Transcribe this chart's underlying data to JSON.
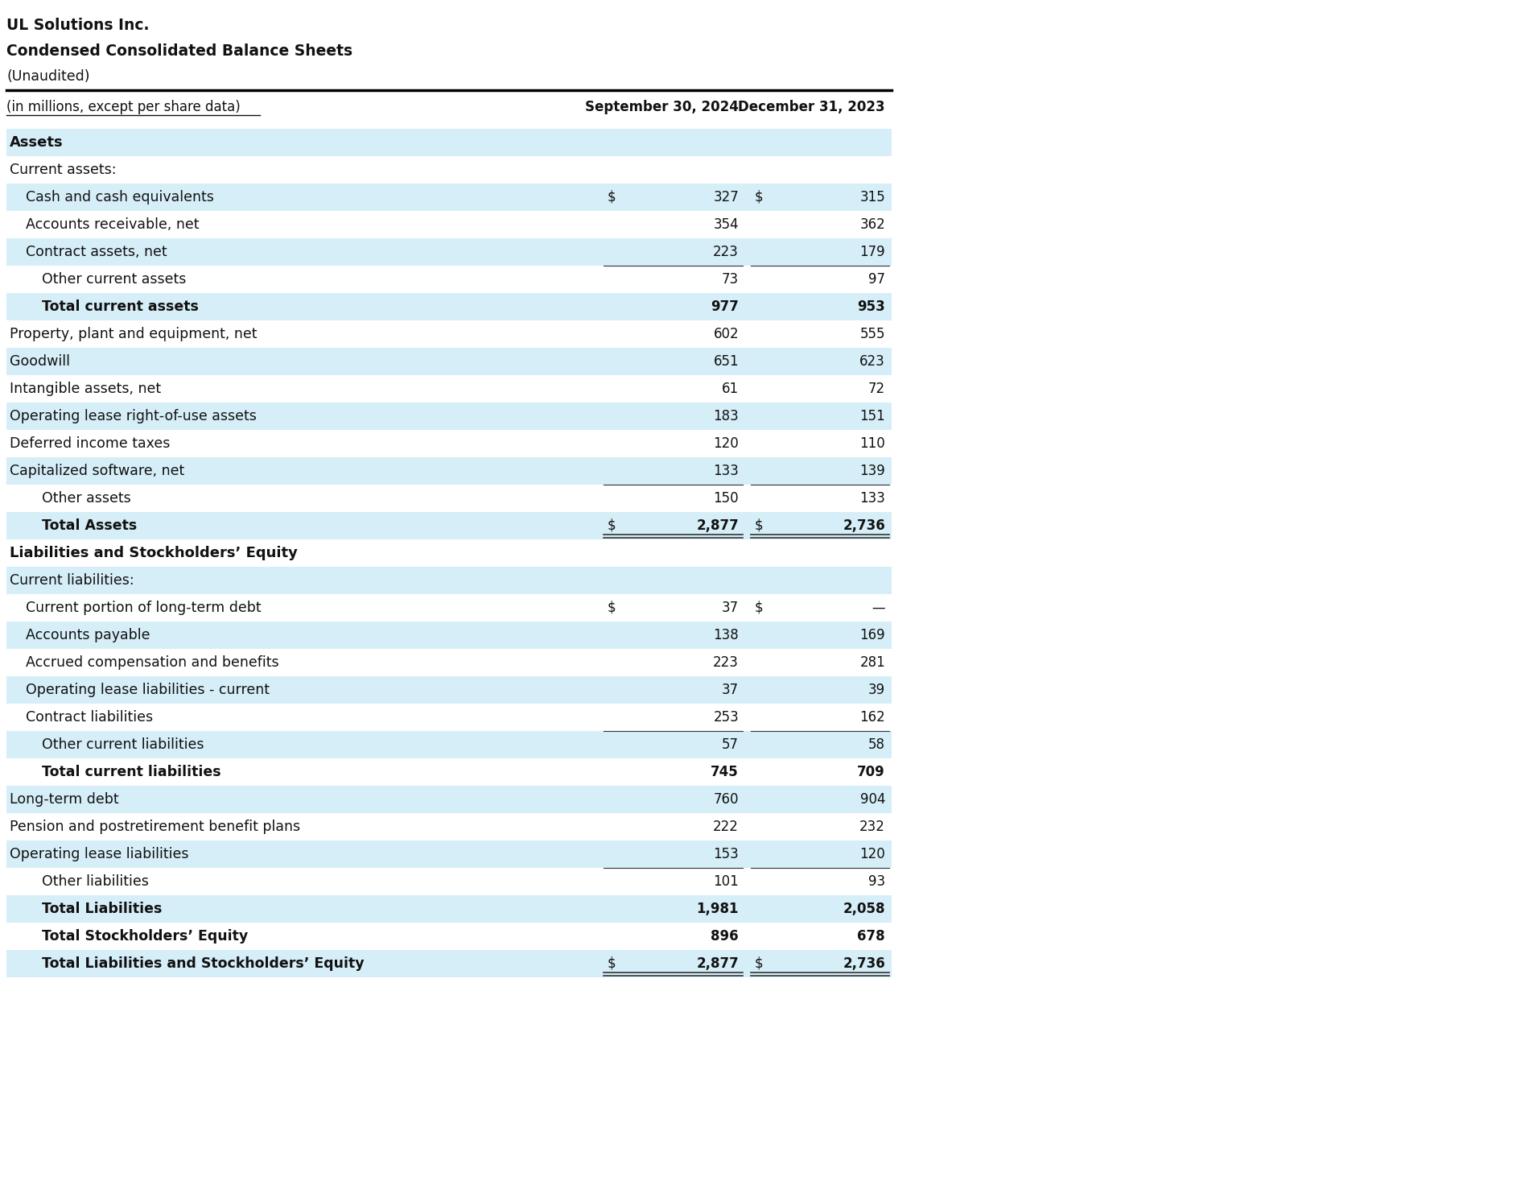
{
  "title_line1": "UL Solutions Inc.",
  "title_line2": "Condensed Consolidated Balance Sheets",
  "title_line3": "(Unaudited)",
  "col_header_label": "(in millions, except per share data)",
  "col1_header": "September 30, 2024",
  "col2_header": "December 31, 2023",
  "bg_color": "#ffffff",
  "light_blue": "#d6eef8",
  "rows": [
    {
      "label": "Assets",
      "val1": "",
      "val2": "",
      "style": "section_header",
      "indent": 0,
      "bg": "#d6eef8",
      "dollar1": false,
      "dollar2": false
    },
    {
      "label": "Current assets:",
      "val1": "",
      "val2": "",
      "style": "subheader",
      "indent": 0,
      "bg": "#ffffff",
      "dollar1": false,
      "dollar2": false
    },
    {
      "label": "Cash and cash equivalents",
      "val1": "327",
      "val2": "315",
      "style": "normal",
      "indent": 1,
      "bg": "#d6eef8",
      "dollar1": true,
      "dollar2": true
    },
    {
      "label": "Accounts receivable, net",
      "val1": "354",
      "val2": "362",
      "style": "normal",
      "indent": 1,
      "bg": "#ffffff",
      "dollar1": false,
      "dollar2": false
    },
    {
      "label": "Contract assets, net",
      "val1": "223",
      "val2": "179",
      "style": "normal",
      "indent": 1,
      "bg": "#d6eef8",
      "dollar1": false,
      "dollar2": false
    },
    {
      "label": "Other current assets",
      "val1": "73",
      "val2": "97",
      "style": "normal",
      "indent": 2,
      "bg": "#ffffff",
      "dollar1": false,
      "dollar2": false
    },
    {
      "label": "Total current assets",
      "val1": "977",
      "val2": "953",
      "style": "subtotal",
      "indent": 2,
      "bg": "#d6eef8",
      "dollar1": false,
      "dollar2": false
    },
    {
      "label": "Property, plant and equipment, net",
      "val1": "602",
      "val2": "555",
      "style": "normal",
      "indent": 0,
      "bg": "#ffffff",
      "dollar1": false,
      "dollar2": false
    },
    {
      "label": "Goodwill",
      "val1": "651",
      "val2": "623",
      "style": "normal",
      "indent": 0,
      "bg": "#d6eef8",
      "dollar1": false,
      "dollar2": false
    },
    {
      "label": "Intangible assets, net",
      "val1": "61",
      "val2": "72",
      "style": "normal",
      "indent": 0,
      "bg": "#ffffff",
      "dollar1": false,
      "dollar2": false
    },
    {
      "label": "Operating lease right-of-use assets",
      "val1": "183",
      "val2": "151",
      "style": "normal",
      "indent": 0,
      "bg": "#d6eef8",
      "dollar1": false,
      "dollar2": false
    },
    {
      "label": "Deferred income taxes",
      "val1": "120",
      "val2": "110",
      "style": "normal",
      "indent": 0,
      "bg": "#ffffff",
      "dollar1": false,
      "dollar2": false
    },
    {
      "label": "Capitalized software, net",
      "val1": "133",
      "val2": "139",
      "style": "normal",
      "indent": 0,
      "bg": "#d6eef8",
      "dollar1": false,
      "dollar2": false
    },
    {
      "label": "Other assets",
      "val1": "150",
      "val2": "133",
      "style": "normal",
      "indent": 2,
      "bg": "#ffffff",
      "dollar1": false,
      "dollar2": false
    },
    {
      "label": "Total Assets",
      "val1": "2,877",
      "val2": "2,736",
      "style": "total",
      "indent": 2,
      "bg": "#d6eef8",
      "dollar1": true,
      "dollar2": true,
      "double_underline": true
    },
    {
      "label": "Liabilities and Stockholders’ Equity",
      "val1": "",
      "val2": "",
      "style": "section_header",
      "indent": 0,
      "bg": "#ffffff",
      "dollar1": false,
      "dollar2": false
    },
    {
      "label": "Current liabilities:",
      "val1": "",
      "val2": "",
      "style": "subheader",
      "indent": 0,
      "bg": "#d6eef8",
      "dollar1": false,
      "dollar2": false
    },
    {
      "label": "Current portion of long-term debt",
      "val1": "37",
      "val2": "—",
      "style": "normal",
      "indent": 1,
      "bg": "#ffffff",
      "dollar1": true,
      "dollar2": true
    },
    {
      "label": "Accounts payable",
      "val1": "138",
      "val2": "169",
      "style": "normal",
      "indent": 1,
      "bg": "#d6eef8",
      "dollar1": false,
      "dollar2": false
    },
    {
      "label": "Accrued compensation and benefits",
      "val1": "223",
      "val2": "281",
      "style": "normal",
      "indent": 1,
      "bg": "#ffffff",
      "dollar1": false,
      "dollar2": false
    },
    {
      "label": "Operating lease liabilities - current",
      "val1": "37",
      "val2": "39",
      "style": "normal",
      "indent": 1,
      "bg": "#d6eef8",
      "dollar1": false,
      "dollar2": false
    },
    {
      "label": "Contract liabilities",
      "val1": "253",
      "val2": "162",
      "style": "normal",
      "indent": 1,
      "bg": "#ffffff",
      "dollar1": false,
      "dollar2": false
    },
    {
      "label": "Other current liabilities",
      "val1": "57",
      "val2": "58",
      "style": "normal",
      "indent": 2,
      "bg": "#d6eef8",
      "dollar1": false,
      "dollar2": false
    },
    {
      "label": "Total current liabilities",
      "val1": "745",
      "val2": "709",
      "style": "subtotal",
      "indent": 2,
      "bg": "#ffffff",
      "dollar1": false,
      "dollar2": false
    },
    {
      "label": "Long-term debt",
      "val1": "760",
      "val2": "904",
      "style": "normal",
      "indent": 0,
      "bg": "#d6eef8",
      "dollar1": false,
      "dollar2": false
    },
    {
      "label": "Pension and postretirement benefit plans",
      "val1": "222",
      "val2": "232",
      "style": "normal",
      "indent": 0,
      "bg": "#ffffff",
      "dollar1": false,
      "dollar2": false
    },
    {
      "label": "Operating lease liabilities",
      "val1": "153",
      "val2": "120",
      "style": "normal",
      "indent": 0,
      "bg": "#d6eef8",
      "dollar1": false,
      "dollar2": false
    },
    {
      "label": "Other liabilities",
      "val1": "101",
      "val2": "93",
      "style": "normal",
      "indent": 2,
      "bg": "#ffffff",
      "dollar1": false,
      "dollar2": false
    },
    {
      "label": "Total Liabilities",
      "val1": "1,981",
      "val2": "2,058",
      "style": "total",
      "indent": 2,
      "bg": "#d6eef8",
      "dollar1": false,
      "dollar2": false
    },
    {
      "label": "Total Stockholders’ Equity",
      "val1": "896",
      "val2": "678",
      "style": "total",
      "indent": 2,
      "bg": "#ffffff",
      "dollar1": false,
      "dollar2": false
    },
    {
      "label": "Total Liabilities and Stockholders’ Equity",
      "val1": "2,877",
      "val2": "2,736",
      "style": "total",
      "indent": 2,
      "bg": "#d6eef8",
      "dollar1": true,
      "dollar2": true,
      "double_underline": true
    }
  ]
}
